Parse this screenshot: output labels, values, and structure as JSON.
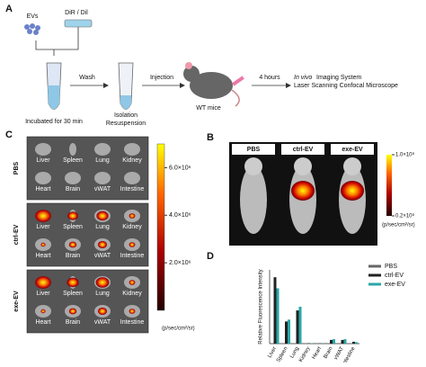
{
  "panel_a": {
    "label": "A",
    "evs": "EVs",
    "dye": "DiR / Dil",
    "incubate": "Incubated for 30 min",
    "wash": "Wash",
    "isolation": "Isolation",
    "resuspension": "Resuspension",
    "injection": "Injection",
    "mice": "WT mice",
    "hours": "4 hours",
    "ivis_italic": "In vivo",
    "ivis_rest": "Imaging System",
    "confocal": "Laser Scanning Confocal Microscope"
  },
  "panel_c": {
    "label": "C",
    "rows": [
      "PBS",
      "ctrl-EV",
      "exe-EV"
    ],
    "organs_top": [
      "Liver",
      "Spleen",
      "Lung",
      "Kidney"
    ],
    "organs_bottom": [
      "Heart",
      "Brain",
      "vWAT",
      "Intestine"
    ],
    "colorbar": {
      "lim": [
        0,
        7000000
      ],
      "ticks": [
        {
          "value": 6000000,
          "label": "6.0×10⁶"
        },
        {
          "value": 4000000,
          "label": "4.0×10⁶"
        },
        {
          "value": 2000000,
          "label": "2.0×10⁶"
        }
      ],
      "unit": "(p/sec/cm²/sr)"
    }
  },
  "panel_b": {
    "label": "B",
    "columns": [
      "PBS",
      "ctrl-EV",
      "exe-EV"
    ],
    "colorbar": {
      "lim": [
        20000000,
        100000000
      ],
      "ticks": [
        {
          "value": 100000000,
          "label": "1.0×10⁸"
        },
        {
          "value": 20000000,
          "label": "0.2×10⁸"
        }
      ],
      "unit": "(p/sec/cm²/sr)"
    }
  },
  "chart_data": {
    "type": "bar",
    "label": "D",
    "ylabel": "Relative Fluorescence Intensity",
    "categories": [
      "Liver",
      "Spleen",
      "Lung",
      "Kidney",
      "Heart",
      "Brain",
      "vWAT",
      "Intestine"
    ],
    "series": [
      {
        "name": "PBS",
        "color": "#666666",
        "values": [
          1,
          1,
          1,
          1,
          1,
          1,
          1,
          1
        ]
      },
      {
        "name": "ctrl-EV",
        "color": "#222222",
        "values": [
          180,
          60,
          90,
          1,
          0.5,
          10,
          10,
          5
        ]
      },
      {
        "name": "exe-EV",
        "color": "#2aa7a7",
        "values": [
          150,
          65,
          100,
          1,
          0.5,
          12,
          12,
          4
        ]
      }
    ],
    "ylim": [
      0,
      200
    ]
  }
}
